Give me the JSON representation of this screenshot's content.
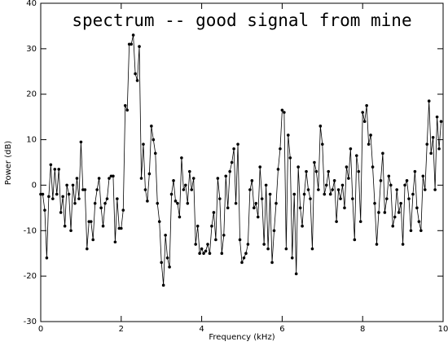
{
  "chart_data": {
    "type": "line",
    "title": "spectrum -- good signal from mine",
    "x_label": "Frequency (kHz)",
    "y_label": "Power (dB)",
    "color": "#000000",
    "xlim": [
      0,
      10
    ],
    "ylim": [
      -30,
      40
    ],
    "xticks": [
      0,
      2,
      4,
      6,
      8,
      10
    ],
    "yticks": [
      -30,
      -20,
      -10,
      0,
      10,
      20,
      30,
      40
    ],
    "x": [
      0,
      0.05,
      0.1,
      0.15,
      0.2,
      0.25,
      0.3,
      0.35,
      0.4,
      0.45,
      0.5,
      0.55,
      0.6,
      0.65,
      0.7,
      0.75,
      0.8,
      0.85,
      0.9,
      0.95,
      1,
      1.05,
      1.1,
      1.15,
      1.2,
      1.25,
      1.3,
      1.35,
      1.4,
      1.45,
      1.5,
      1.55,
      1.6,
      1.65,
      1.7,
      1.75,
      1.8,
      1.85,
      1.9,
      1.95,
      2,
      2.05,
      2.1,
      2.15,
      2.2,
      2.25,
      2.3,
      2.35,
      2.4,
      2.45,
      2.5,
      2.55,
      2.6,
      2.65,
      2.7,
      2.75,
      2.8,
      2.85,
      2.9,
      2.95,
      3,
      3.05,
      3.1,
      3.15,
      3.2,
      3.25,
      3.3,
      3.35,
      3.4,
      3.45,
      3.5,
      3.55,
      3.6,
      3.65,
      3.7,
      3.75,
      3.8,
      3.85,
      3.9,
      3.95,
      4,
      4.05,
      4.1,
      4.15,
      4.2,
      4.25,
      4.3,
      4.35,
      4.4,
      4.45,
      4.5,
      4.55,
      4.6,
      4.65,
      4.7,
      4.75,
      4.8,
      4.85,
      4.9,
      4.95,
      5,
      5.05,
      5.1,
      5.15,
      5.2,
      5.25,
      5.3,
      5.35,
      5.4,
      5.45,
      5.5,
      5.55,
      5.6,
      5.65,
      5.7,
      5.75,
      5.8,
      5.85,
      5.9,
      5.95,
      6,
      6.05,
      6.1,
      6.15,
      6.2,
      6.25,
      6.3,
      6.35,
      6.4,
      6.45,
      6.5,
      6.55,
      6.6,
      6.65,
      6.7,
      6.75,
      6.8,
      6.85,
      6.9,
      6.95,
      7,
      7.05,
      7.1,
      7.15,
      7.2,
      7.25,
      7.3,
      7.35,
      7.4,
      7.45,
      7.5,
      7.55,
      7.6,
      7.65,
      7.7,
      7.75,
      7.8,
      7.85,
      7.9,
      7.95,
      8,
      8.05,
      8.1,
      8.15,
      8.2,
      8.25,
      8.3,
      8.35,
      8.4,
      8.45,
      8.5,
      8.55,
      8.6,
      8.65,
      8.7,
      8.75,
      8.8,
      8.85,
      8.9,
      8.95,
      9,
      9.05,
      9.1,
      9.15,
      9.2,
      9.25,
      9.3,
      9.35,
      9.4,
      9.45,
      9.5,
      9.55,
      9.6,
      9.65,
      9.7,
      9.75,
      9.8,
      9.85,
      9.9,
      9.95
    ],
    "values": [
      -2,
      -2,
      -5.5,
      -16,
      -2.5,
      4.5,
      -3,
      3.5,
      -2,
      3.5,
      -6,
      -2.5,
      -9,
      0,
      -2,
      -10,
      0,
      -4,
      1.5,
      -3,
      9.5,
      -1,
      -1,
      -14,
      -8,
      -8,
      -12,
      -4,
      -1,
      1.5,
      -5,
      -9,
      -4,
      -3,
      1.5,
      2,
      2,
      -12.5,
      -3,
      -9.5,
      -9.5,
      -5.5,
      17.5,
      16.5,
      31,
      31,
      33,
      24.5,
      23,
      30.5,
      1.5,
      9,
      -1,
      -3.5,
      2.5,
      13,
      10,
      7,
      -4,
      -8,
      -17,
      -22,
      -11,
      -16,
      -18,
      -2,
      1,
      -3.5,
      -4,
      -7,
      6,
      -1,
      0,
      -4,
      3,
      -1,
      1.5,
      -13,
      -9,
      -15,
      -14,
      -15,
      -14.5,
      -13,
      -15,
      -9,
      -6,
      -12,
      1.5,
      -3,
      -15,
      -11,
      2,
      -5,
      3,
      5,
      8,
      -4,
      9,
      -12,
      -17,
      -16,
      -15,
      -13,
      -1,
      1,
      -5,
      -4,
      -7,
      4,
      -3,
      -13,
      0,
      -14,
      -2,
      -17,
      -10,
      -4,
      3.5,
      8,
      16.5,
      16,
      -14,
      11,
      6,
      -16,
      -2,
      -19.5,
      4,
      -5,
      -9,
      -2,
      3,
      -1,
      -3,
      -14,
      5,
      3,
      -1,
      13,
      9,
      -2,
      0,
      3,
      -2,
      -1,
      1,
      -8,
      -1,
      -3,
      0,
      -5,
      4,
      1.5,
      8,
      -3,
      -12,
      6.5,
      3,
      -8,
      16,
      14,
      17.5,
      9,
      11,
      4,
      -4,
      -13,
      -6,
      1,
      7,
      -6,
      -3,
      2,
      0,
      -9,
      -7,
      -1,
      -6,
      -4,
      -13,
      0,
      1,
      -3,
      -10,
      -2,
      3,
      -5,
      -8,
      -10,
      2,
      -1,
      9,
      18.5,
      7,
      10.5,
      -1,
      15,
      8,
      14
    ]
  }
}
